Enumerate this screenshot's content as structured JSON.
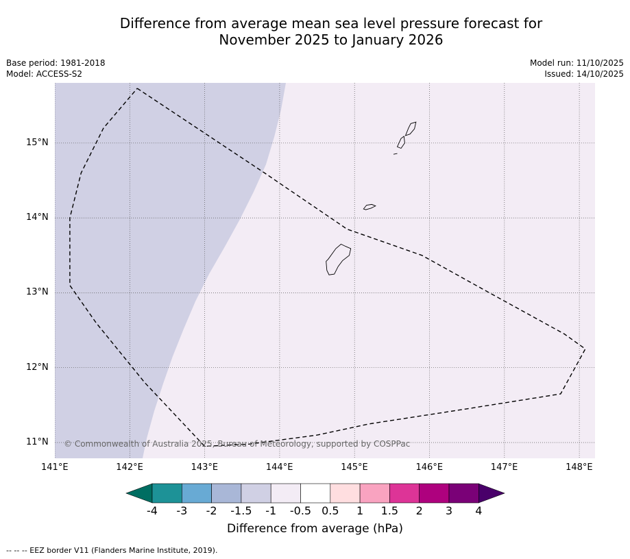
{
  "title": {
    "line1": "Difference from average mean sea level pressure forecast for",
    "line2": "November 2025 to January 2026"
  },
  "meta": {
    "base_period": "Base period: 1981-2018",
    "model": "Model: ACCESS-S2",
    "model_run": "Model run: 11/10/2025",
    "issued": "Issued: 14/10/2025"
  },
  "map": {
    "lon_labels": [
      "141°E",
      "142°E",
      "143°E",
      "144°E",
      "145°E",
      "146°E",
      "147°E",
      "148°E"
    ],
    "lat_labels": [
      "15°N",
      "14°N",
      "13°N",
      "12°N",
      "11°N"
    ],
    "copyright": "© Commonwealth of Australia 2025, Bureau of Meteorology, supported by COSPPac",
    "regions": [
      {
        "name": "-1.5 to -1 hPa",
        "color": "#d0d0e4"
      },
      {
        "name": "-1 to -0.5 hPa",
        "color": "#f3ecf5"
      }
    ],
    "eez_border": [
      [
        142.1,
        15.73
      ],
      [
        143.8,
        14.6
      ],
      [
        144.9,
        13.85
      ],
      [
        145.9,
        13.5
      ],
      [
        146.8,
        13
      ],
      [
        147.8,
        12.45
      ],
      [
        148.08,
        12.25
      ],
      [
        147.75,
        11.65
      ],
      [
        146.5,
        11.45
      ],
      [
        145.2,
        11.25
      ],
      [
        144.5,
        11.1
      ],
      [
        143.6,
        10.98
      ],
      [
        143.0,
        10.95
      ],
      [
        142.2,
        11.8
      ],
      [
        141.55,
        12.6
      ],
      [
        141.2,
        13.1
      ],
      [
        141.2,
        14.0
      ],
      [
        141.35,
        14.6
      ],
      [
        141.65,
        15.2
      ],
      [
        142.1,
        15.73
      ]
    ],
    "islands": [
      {
        "name": "Guam",
        "coords": [
          [
            144.65,
            13.45
          ],
          [
            144.75,
            13.59
          ],
          [
            144.82,
            13.65
          ],
          [
            144.88,
            13.62
          ],
          [
            144.95,
            13.59
          ],
          [
            144.93,
            13.5
          ],
          [
            144.84,
            13.43
          ],
          [
            144.78,
            13.35
          ],
          [
            144.73,
            13.25
          ],
          [
            144.66,
            13.24
          ],
          [
            144.63,
            13.3
          ],
          [
            144.62,
            13.42
          ]
        ]
      },
      {
        "name": "Rota",
        "coords": [
          [
            145.12,
            14.12
          ],
          [
            145.16,
            14.17
          ],
          [
            145.23,
            14.18
          ],
          [
            145.28,
            14.16
          ],
          [
            145.22,
            14.13
          ],
          [
            145.15,
            14.11
          ]
        ]
      },
      {
        "name": "Tinian",
        "coords": [
          [
            145.57,
            14.95
          ],
          [
            145.62,
            15.06
          ],
          [
            145.66,
            15.09
          ],
          [
            145.67,
            15.0
          ],
          [
            145.62,
            14.93
          ]
        ]
      },
      {
        "name": "Saipan",
        "coords": [
          [
            145.68,
            15.1
          ],
          [
            145.72,
            15.2
          ],
          [
            145.75,
            15.26
          ],
          [
            145.82,
            15.28
          ],
          [
            145.8,
            15.19
          ],
          [
            145.74,
            15.12
          ]
        ]
      },
      {
        "name": "Aguijan",
        "coords": [
          [
            145.52,
            14.85
          ],
          [
            145.57,
            14.86
          ]
        ]
      }
    ]
  },
  "colorbar": {
    "labels": [
      "-4",
      "-3",
      "-2",
      "-1.5",
      "-1",
      "-0.5",
      "0.5",
      "1",
      "1.5",
      "2",
      "3",
      "4"
    ],
    "colors": [
      "#006e62",
      "#1d9297",
      "#68aad4",
      "#a9b7d7",
      "#d0d0e4",
      "#f3ecf5",
      "#ffffff",
      "#ffdee0",
      "#f9a3c0",
      "#dd3497",
      "#ae017e",
      "#7a0177",
      "#49006a"
    ],
    "title": "Difference from average (hPa)"
  },
  "footnote": "--  --  -- EEZ border V11 (Flanders Marine Institute, 2019)."
}
